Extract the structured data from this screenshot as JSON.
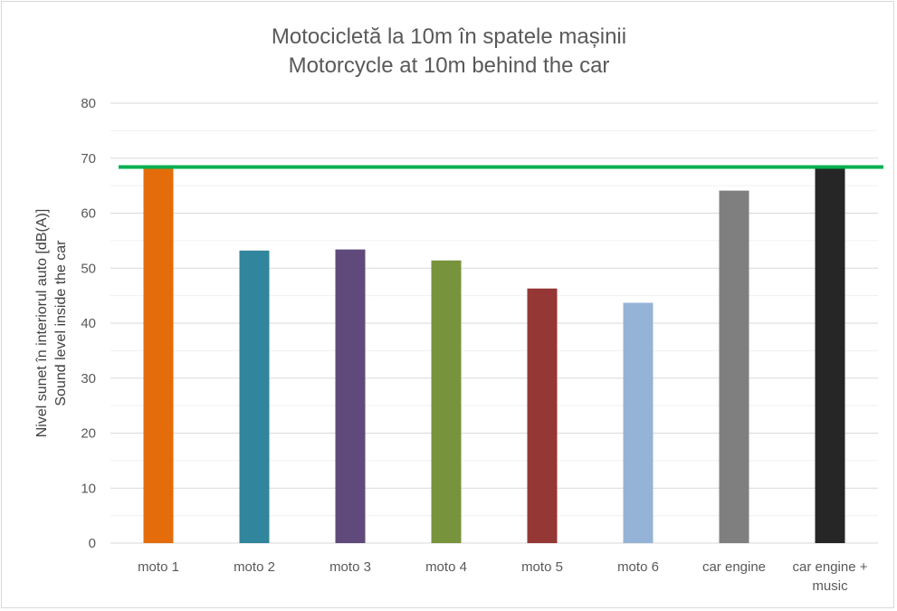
{
  "chart_data": {
    "type": "bar",
    "title": [
      "Motocicletă la 10m în spatele mașinii",
      "Motorcycle at 10m behind the car"
    ],
    "ylabel": [
      "Nivel sunet în interiorul auto [dB(A)]",
      "Sound level inside the car"
    ],
    "xlabel": "",
    "categories": [
      [
        "moto 1"
      ],
      [
        "moto 2"
      ],
      [
        "moto 3"
      ],
      [
        "moto 4"
      ],
      [
        "moto 5"
      ],
      [
        "moto 6"
      ],
      [
        "car engine"
      ],
      [
        "car engine +",
        "music"
      ]
    ],
    "values": [
      68.6,
      53.2,
      53.4,
      51.4,
      46.3,
      43.7,
      64.1,
      68.2
    ],
    "colors": [
      "#e46c0a",
      "#31859c",
      "#604a7b",
      "#77933c",
      "#953735",
      "#95b3d7",
      "#7f7f7f",
      "#262626"
    ],
    "ylim": [
      0,
      80
    ],
    "yticks": [
      0,
      10,
      20,
      30,
      40,
      50,
      60,
      70,
      80
    ],
    "grid": true,
    "reference_line": {
      "value": 68.4,
      "color": "#00b050"
    },
    "legend": "none"
  }
}
